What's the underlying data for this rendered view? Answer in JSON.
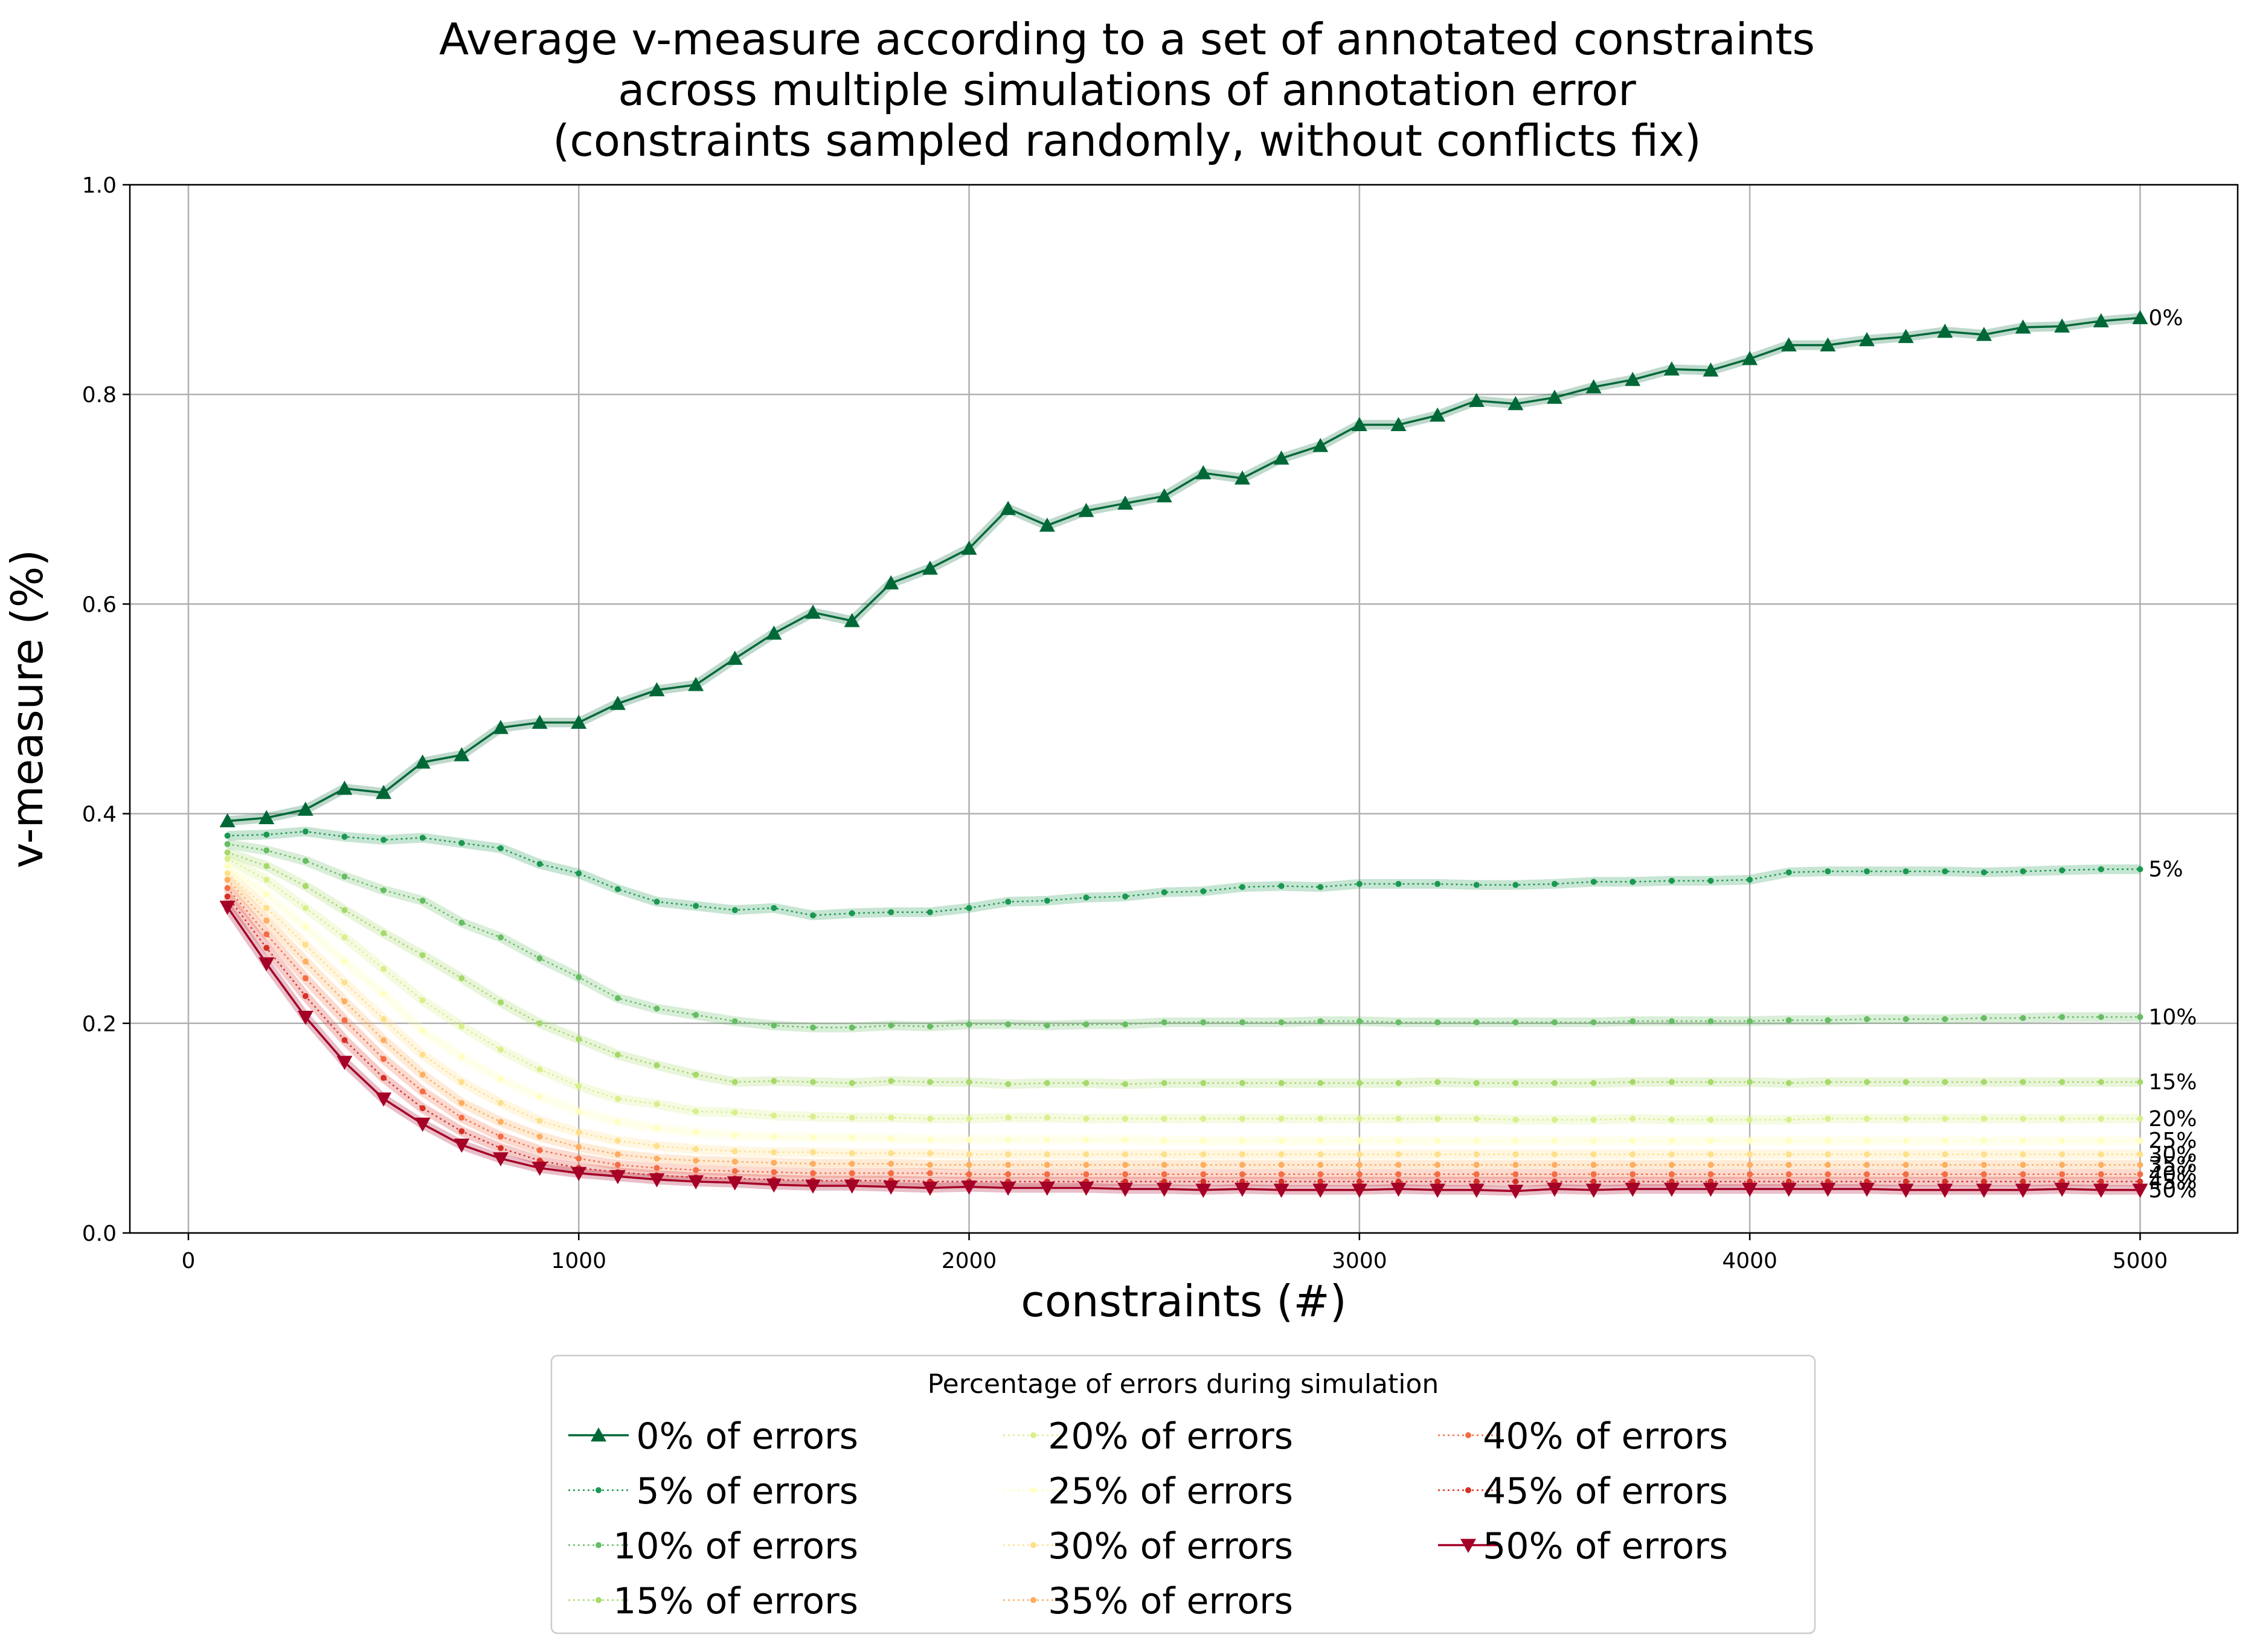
{
  "chart_data": {
    "type": "line",
    "title": [
      "Average v-measure according to a set of annotated constraints",
      "across multiple simulations of annotation error",
      "(constraints sampled randomly, without conflicts fix)"
    ],
    "xlabel": "constraints (#)",
    "ylabel": "v-measure (%)",
    "xlim": [
      -150,
      5250
    ],
    "ylim": [
      0.0,
      1.0
    ],
    "xticks": [
      0,
      1000,
      2000,
      3000,
      4000,
      5000
    ],
    "yticks": [
      "0.0",
      "0.2",
      "0.4",
      "0.6",
      "0.8",
      "1.0"
    ],
    "grid": true,
    "legend": {
      "title": "Percentage of errors during simulation",
      "placement": "below plot, center",
      "columns": 3
    },
    "x": [
      100,
      200,
      300,
      400,
      500,
      600,
      700,
      800,
      900,
      1000,
      1100,
      1200,
      1300,
      1400,
      1500,
      1600,
      1700,
      1800,
      1900,
      2000,
      2100,
      2200,
      2300,
      2400,
      2500,
      2600,
      2700,
      2800,
      2900,
      3000,
      3100,
      3200,
      3300,
      3400,
      3500,
      3600,
      3700,
      3800,
      3900,
      4000,
      4100,
      4200,
      4300,
      4400,
      4500,
      4600,
      4700,
      4800,
      4900,
      5000
    ],
    "series": [
      {
        "name": "0% of errors",
        "end_label": "0%",
        "color": "#006837",
        "marker": "triangle-up",
        "style": "solid",
        "values": [
          0.393,
          0.396,
          0.404,
          0.424,
          0.42,
          0.449,
          0.456,
          0.482,
          0.487,
          0.487,
          0.505,
          0.518,
          0.523,
          0.548,
          0.572,
          0.592,
          0.584,
          0.62,
          0.634,
          0.653,
          0.691,
          0.675,
          0.689,
          0.696,
          0.703,
          0.725,
          0.72,
          0.739,
          0.751,
          0.771,
          0.771,
          0.78,
          0.794,
          0.791,
          0.797,
          0.807,
          0.814,
          0.824,
          0.823,
          0.834,
          0.847,
          0.847,
          0.852,
          0.855,
          0.86,
          0.857,
          0.864,
          0.865,
          0.87,
          0.873
        ]
      },
      {
        "name": "5% of errors",
        "end_label": "5%",
        "color": "#1a9850",
        "marker": "dot",
        "style": "dotted",
        "values": [
          0.379,
          0.38,
          0.383,
          0.378,
          0.375,
          0.377,
          0.372,
          0.367,
          0.352,
          0.343,
          0.328,
          0.316,
          0.312,
          0.308,
          0.31,
          0.303,
          0.305,
          0.306,
          0.306,
          0.31,
          0.316,
          0.317,
          0.32,
          0.321,
          0.325,
          0.326,
          0.33,
          0.331,
          0.33,
          0.333,
          0.333,
          0.333,
          0.332,
          0.332,
          0.333,
          0.335,
          0.335,
          0.336,
          0.336,
          0.337,
          0.344,
          0.345,
          0.345,
          0.345,
          0.345,
          0.344,
          0.345,
          0.346,
          0.347,
          0.347
        ]
      },
      {
        "name": "10% of errors",
        "end_label": "10%",
        "color": "#66bd63",
        "marker": "dot",
        "style": "dotted",
        "values": [
          0.371,
          0.365,
          0.355,
          0.34,
          0.327,
          0.317,
          0.296,
          0.282,
          0.262,
          0.244,
          0.224,
          0.214,
          0.208,
          0.202,
          0.198,
          0.196,
          0.196,
          0.198,
          0.197,
          0.199,
          0.199,
          0.198,
          0.199,
          0.199,
          0.201,
          0.201,
          0.201,
          0.201,
          0.202,
          0.202,
          0.201,
          0.201,
          0.201,
          0.201,
          0.201,
          0.201,
          0.202,
          0.202,
          0.202,
          0.202,
          0.203,
          0.203,
          0.204,
          0.204,
          0.204,
          0.205,
          0.205,
          0.206,
          0.206,
          0.206
        ]
      },
      {
        "name": "15% of errors",
        "end_label": "15%",
        "color": "#a6d96a",
        "marker": "dot",
        "style": "dotted",
        "values": [
          0.363,
          0.35,
          0.331,
          0.308,
          0.286,
          0.265,
          0.243,
          0.22,
          0.2,
          0.185,
          0.17,
          0.16,
          0.151,
          0.144,
          0.145,
          0.144,
          0.143,
          0.145,
          0.144,
          0.144,
          0.142,
          0.143,
          0.143,
          0.142,
          0.143,
          0.143,
          0.143,
          0.143,
          0.143,
          0.143,
          0.143,
          0.144,
          0.143,
          0.143,
          0.143,
          0.143,
          0.144,
          0.144,
          0.144,
          0.144,
          0.143,
          0.144,
          0.144,
          0.144,
          0.144,
          0.144,
          0.144,
          0.144,
          0.144,
          0.144
        ]
      },
      {
        "name": "20% of errors",
        "end_label": "20%",
        "color": "#d9ef8b",
        "marker": "dot",
        "style": "dotted",
        "values": [
          0.357,
          0.337,
          0.31,
          0.282,
          0.252,
          0.222,
          0.197,
          0.175,
          0.156,
          0.14,
          0.128,
          0.123,
          0.116,
          0.115,
          0.112,
          0.111,
          0.11,
          0.11,
          0.109,
          0.109,
          0.11,
          0.11,
          0.109,
          0.109,
          0.109,
          0.109,
          0.109,
          0.109,
          0.109,
          0.109,
          0.109,
          0.109,
          0.109,
          0.108,
          0.108,
          0.108,
          0.109,
          0.108,
          0.108,
          0.108,
          0.108,
          0.109,
          0.109,
          0.109,
          0.109,
          0.109,
          0.109,
          0.109,
          0.109,
          0.109
        ]
      },
      {
        "name": "25% of errors",
        "end_label": "25%",
        "color": "#ffffbf",
        "marker": "dot",
        "style": "dotted",
        "values": [
          0.35,
          0.323,
          0.292,
          0.259,
          0.228,
          0.193,
          0.168,
          0.147,
          0.13,
          0.116,
          0.106,
          0.1,
          0.096,
          0.093,
          0.092,
          0.091,
          0.091,
          0.09,
          0.089,
          0.089,
          0.089,
          0.089,
          0.089,
          0.089,
          0.088,
          0.088,
          0.088,
          0.088,
          0.088,
          0.088,
          0.088,
          0.088,
          0.088,
          0.088,
          0.088,
          0.088,
          0.088,
          0.088,
          0.088,
          0.088,
          0.088,
          0.088,
          0.088,
          0.088,
          0.088,
          0.088,
          0.088,
          0.088,
          0.088,
          0.088
        ]
      },
      {
        "name": "30% of errors",
        "end_label": "30%",
        "color": "#fee08b",
        "marker": "dot",
        "style": "dotted",
        "values": [
          0.343,
          0.31,
          0.275,
          0.239,
          0.204,
          0.17,
          0.144,
          0.124,
          0.107,
          0.096,
          0.088,
          0.083,
          0.08,
          0.078,
          0.077,
          0.077,
          0.076,
          0.076,
          0.076,
          0.075,
          0.075,
          0.075,
          0.075,
          0.075,
          0.075,
          0.075,
          0.075,
          0.075,
          0.075,
          0.075,
          0.075,
          0.075,
          0.075,
          0.075,
          0.075,
          0.075,
          0.075,
          0.075,
          0.075,
          0.075,
          0.075,
          0.075,
          0.075,
          0.075,
          0.075,
          0.075,
          0.075,
          0.075,
          0.075,
          0.075
        ]
      },
      {
        "name": "35% of errors",
        "end_label": "35%",
        "color": "#fdae61",
        "marker": "dot",
        "style": "dotted",
        "values": [
          0.337,
          0.298,
          0.259,
          0.221,
          0.184,
          0.151,
          0.124,
          0.106,
          0.092,
          0.082,
          0.075,
          0.071,
          0.069,
          0.068,
          0.067,
          0.066,
          0.066,
          0.066,
          0.065,
          0.065,
          0.065,
          0.065,
          0.065,
          0.065,
          0.065,
          0.065,
          0.065,
          0.065,
          0.065,
          0.065,
          0.065,
          0.065,
          0.065,
          0.065,
          0.065,
          0.065,
          0.065,
          0.065,
          0.065,
          0.065,
          0.065,
          0.065,
          0.065,
          0.065,
          0.065,
          0.065,
          0.065,
          0.065,
          0.065,
          0.065
        ]
      },
      {
        "name": "40% of errors",
        "end_label": "40%",
        "color": "#f46d43",
        "marker": "dot",
        "style": "dotted",
        "values": [
          0.329,
          0.285,
          0.243,
          0.203,
          0.166,
          0.135,
          0.11,
          0.092,
          0.079,
          0.071,
          0.065,
          0.062,
          0.06,
          0.059,
          0.058,
          0.057,
          0.057,
          0.057,
          0.057,
          0.056,
          0.056,
          0.056,
          0.056,
          0.056,
          0.056,
          0.056,
          0.056,
          0.056,
          0.056,
          0.056,
          0.056,
          0.056,
          0.056,
          0.056,
          0.056,
          0.056,
          0.056,
          0.056,
          0.056,
          0.056,
          0.056,
          0.056,
          0.056,
          0.056,
          0.056,
          0.056,
          0.056,
          0.056,
          0.056,
          0.056
        ]
      },
      {
        "name": "45% of errors",
        "end_label": "45%",
        "color": "#d73027",
        "marker": "dot",
        "style": "dotted",
        "values": [
          0.321,
          0.272,
          0.226,
          0.184,
          0.148,
          0.119,
          0.097,
          0.081,
          0.069,
          0.062,
          0.058,
          0.055,
          0.053,
          0.052,
          0.051,
          0.05,
          0.05,
          0.05,
          0.049,
          0.049,
          0.049,
          0.049,
          0.049,
          0.049,
          0.049,
          0.049,
          0.049,
          0.049,
          0.049,
          0.049,
          0.049,
          0.049,
          0.049,
          0.049,
          0.049,
          0.049,
          0.049,
          0.049,
          0.049,
          0.049,
          0.049,
          0.049,
          0.049,
          0.049,
          0.049,
          0.049,
          0.049,
          0.049,
          0.049,
          0.049
        ]
      },
      {
        "name": "50% of errors",
        "end_label": "50%",
        "color": "#a50026",
        "marker": "triangle-down",
        "style": "solid",
        "values": [
          0.311,
          0.257,
          0.206,
          0.163,
          0.128,
          0.104,
          0.084,
          0.071,
          0.062,
          0.057,
          0.054,
          0.051,
          0.049,
          0.048,
          0.046,
          0.045,
          0.045,
          0.044,
          0.043,
          0.044,
          0.043,
          0.043,
          0.043,
          0.042,
          0.042,
          0.041,
          0.042,
          0.041,
          0.041,
          0.041,
          0.042,
          0.041,
          0.041,
          0.04,
          0.042,
          0.041,
          0.042,
          0.042,
          0.042,
          0.042,
          0.042,
          0.042,
          0.042,
          0.041,
          0.041,
          0.041,
          0.041,
          0.042,
          0.041,
          0.041
        ]
      }
    ]
  }
}
